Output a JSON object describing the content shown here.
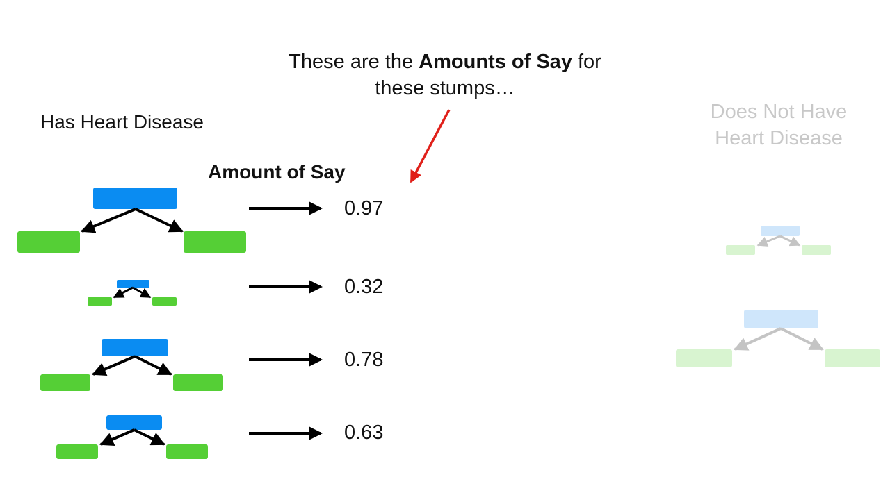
{
  "annotation": {
    "line1_prefix": "These are the ",
    "line1_bold": "Amounts of Say",
    "line1_suffix": " for",
    "line2": "these stumps…"
  },
  "groups": {
    "left_label": "Has Heart Disease",
    "right_label": "Does Not Have Heart Disease"
  },
  "column_header": "Amount of Say",
  "stumps_left": [
    {
      "amount_of_say": "0.97"
    },
    {
      "amount_of_say": "0.32"
    },
    {
      "amount_of_say": "0.78"
    },
    {
      "amount_of_say": "0.63"
    }
  ],
  "colors": {
    "root_node": "#0a8cf2",
    "leaf_node": "#55cf36",
    "arrow": "#000000",
    "pointer_arrow": "#e0201a",
    "faded_text": "#c8c8c8",
    "faded_root": "#cfe6fb",
    "faded_leaf": "#d8f4d0",
    "faded_arrow": "#c4c4c4"
  }
}
